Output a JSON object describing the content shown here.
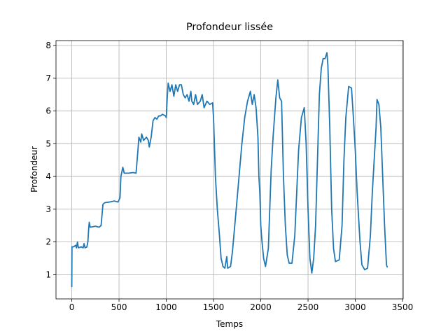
{
  "chart_data": {
    "type": "line",
    "title": "Profondeur lissée",
    "x_label": "Temps",
    "y_label": "Profondeur",
    "x": [
      0,
      2,
      20,
      40,
      50,
      60,
      70,
      100,
      120,
      130,
      140,
      160,
      170,
      180,
      185,
      195,
      250,
      290,
      310,
      330,
      350,
      400,
      450,
      490,
      510,
      520,
      540,
      555,
      600,
      650,
      680,
      700,
      710,
      730,
      740,
      760,
      790,
      810,
      820,
      840,
      860,
      880,
      900,
      920,
      940,
      960,
      990,
      1000,
      1010,
      1020,
      1040,
      1060,
      1080,
      1100,
      1120,
      1140,
      1160,
      1180,
      1200,
      1220,
      1240,
      1260,
      1270,
      1290,
      1310,
      1330,
      1360,
      1380,
      1400,
      1430,
      1460,
      1490,
      1500,
      1520,
      1540,
      1560,
      1580,
      1600,
      1620,
      1640,
      1650,
      1680,
      1700,
      1740,
      1770,
      1800,
      1830,
      1860,
      1890,
      1910,
      1930,
      1950,
      1970,
      1980,
      1990,
      2000,
      2010,
      2030,
      2050,
      2080,
      2110,
      2130,
      2160,
      2180,
      2200,
      2220,
      2240,
      2260,
      2280,
      2300,
      2330,
      2360,
      2380,
      2400,
      2430,
      2460,
      2480,
      2500,
      2520,
      2540,
      2560,
      2580,
      2600,
      2620,
      2640,
      2660,
      2680,
      2700,
      2710,
      2730,
      2750,
      2770,
      2790,
      2830,
      2860,
      2880,
      2900,
      2930,
      2960,
      2980,
      3000,
      3020,
      3050,
      3070,
      3100,
      3130,
      3160,
      3180,
      3200,
      3220,
      3230,
      3250,
      3270,
      3290,
      3310,
      3330,
      3340
    ],
    "series": [
      {
        "name": "Profondeur",
        "color": "#1f77b4",
        "values": [
          0.62,
          1.85,
          1.85,
          1.9,
          1.82,
          2.0,
          1.82,
          1.85,
          1.82,
          1.95,
          1.82,
          1.85,
          2.0,
          2.45,
          2.6,
          2.45,
          2.48,
          2.45,
          2.5,
          3.15,
          3.2,
          3.22,
          3.25,
          3.22,
          3.35,
          4.0,
          4.28,
          4.1,
          4.1,
          4.12,
          4.1,
          4.8,
          5.2,
          5.05,
          5.3,
          5.1,
          5.2,
          5.1,
          4.9,
          5.2,
          5.7,
          5.8,
          5.75,
          5.85,
          5.85,
          5.9,
          5.85,
          5.8,
          6.4,
          6.85,
          6.6,
          6.8,
          6.45,
          6.8,
          6.6,
          6.8,
          6.8,
          6.5,
          6.4,
          6.5,
          6.3,
          6.6,
          6.3,
          6.2,
          6.5,
          6.2,
          6.3,
          6.5,
          6.1,
          6.3,
          6.2,
          6.25,
          5.8,
          4.0,
          3.0,
          2.3,
          1.5,
          1.25,
          1.2,
          1.55,
          1.2,
          1.25,
          1.7,
          3.0,
          4.0,
          5.0,
          5.8,
          6.3,
          6.6,
          6.2,
          6.5,
          6.1,
          5.2,
          4.0,
          3.5,
          2.5,
          2.1,
          1.5,
          1.25,
          1.8,
          4.2,
          5.2,
          6.4,
          6.95,
          6.4,
          6.3,
          4.0,
          2.5,
          1.6,
          1.35,
          1.35,
          2.2,
          3.5,
          4.8,
          5.8,
          6.1,
          5.0,
          3.0,
          1.5,
          1.05,
          1.5,
          2.5,
          4.5,
          6.5,
          7.3,
          7.6,
          7.6,
          7.78,
          7.4,
          5.5,
          3.0,
          1.8,
          1.4,
          1.45,
          2.5,
          4.5,
          5.8,
          6.75,
          6.7,
          5.8,
          4.8,
          3.5,
          2.0,
          1.3,
          1.15,
          1.2,
          2.2,
          3.5,
          4.5,
          5.5,
          6.35,
          6.2,
          5.5,
          4.0,
          2.5,
          1.3,
          1.22
        ]
      }
    ],
    "xlim": [
      -167,
      3507
    ],
    "ylim": [
      0.26,
      8.15
    ],
    "xticks": [
      0,
      500,
      1000,
      1500,
      2000,
      2500,
      3000,
      3500
    ],
    "yticks": [
      1,
      2,
      3,
      4,
      5,
      6,
      7,
      8
    ],
    "grid": true
  }
}
